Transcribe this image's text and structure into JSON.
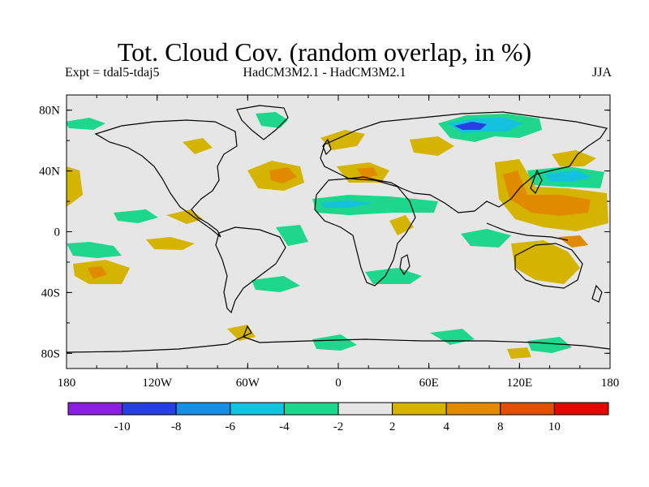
{
  "title": "Tot. Cloud Cov. (random overlap, in %)",
  "expt": "Expt = tdal5-tdaj5",
  "model": "HadCM3M2.1 - HadCM3M2.1",
  "season": "JJA",
  "map": {
    "projection": "equirectangular",
    "lon_range": [
      -180,
      180
    ],
    "lat_range": [
      -90,
      90
    ],
    "x_tick_labels": [
      "180",
      "120W",
      "60W",
      "0",
      "60E",
      "120E",
      "180"
    ],
    "y_tick_labels": [
      "80N",
      "40N",
      "0",
      "40S",
      "80S"
    ],
    "background_color": "#e6e6e6"
  },
  "colorbar": {
    "labels": [
      "-10",
      "-8",
      "-6",
      "-4",
      "-2",
      "2",
      "4",
      "8",
      "10"
    ],
    "colors": [
      "#8a1fe0",
      "#2a3fe0",
      "#1a8ee0",
      "#14c1df",
      "#1fd78c",
      "#e6e6e6",
      "#d4b400",
      "#e08a00",
      "#e05000",
      "#e00a00"
    ]
  }
}
